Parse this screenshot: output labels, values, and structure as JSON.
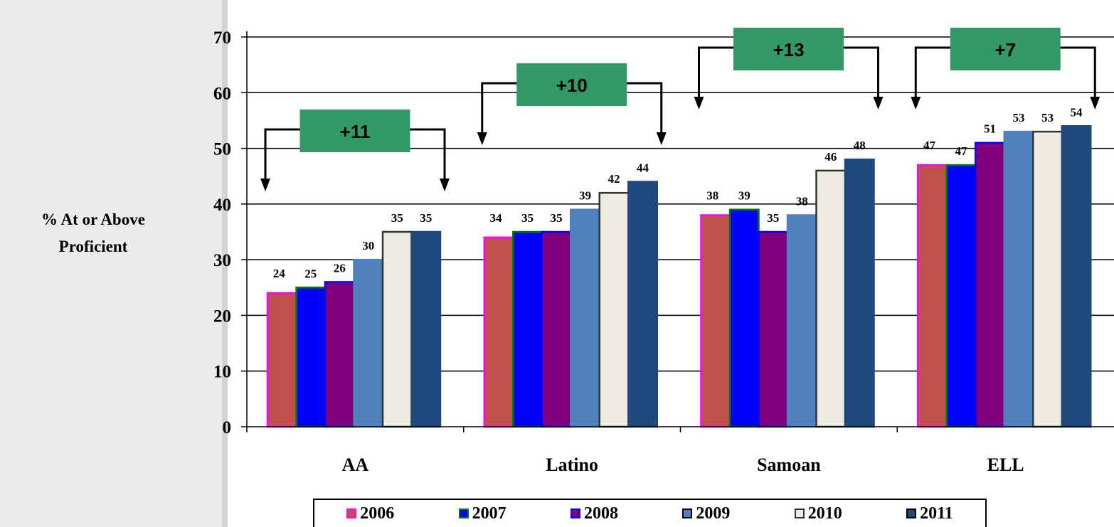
{
  "chart_data": {
    "type": "bar",
    "ylabel": [
      "% At or Above",
      "Proficient"
    ],
    "ylim": [
      0,
      70
    ],
    "yticks": [
      0,
      10,
      20,
      30,
      40,
      50,
      60,
      70
    ],
    "grid": true,
    "legend_position": "bottom",
    "categories": [
      "AA",
      "Latino",
      "Samoan",
      "ELL"
    ],
    "series": [
      {
        "name": "2006",
        "color": "#c0504d",
        "border": "#ff00ff",
        "values": [
          24,
          34,
          38,
          47
        ]
      },
      {
        "name": "2007",
        "color": "#0000ff",
        "border": "#008000",
        "values": [
          25,
          35,
          39,
          47
        ]
      },
      {
        "name": "2008",
        "color": "#800080",
        "border": "#0000ff",
        "values": [
          26,
          35,
          35,
          51
        ]
      },
      {
        "name": "2009",
        "color": "#4f81bd",
        "border": "#4f81bd",
        "values": [
          30,
          39,
          38,
          53
        ]
      },
      {
        "name": "2010",
        "color": "#eeece1",
        "border": "#333333",
        "values": [
          35,
          42,
          46,
          53
        ]
      },
      {
        "name": "2011",
        "color": "#1f497d",
        "border": "#1f497d",
        "values": [
          35,
          44,
          48,
          54
        ]
      }
    ],
    "annotations": [
      {
        "label": "+11",
        "category": "AA"
      },
      {
        "label": "+10",
        "category": "Latino"
      },
      {
        "label": "+13",
        "category": "Samoan"
      },
      {
        "label": "+7",
        "category": "ELL"
      }
    ],
    "annotation_color": "#339966"
  }
}
